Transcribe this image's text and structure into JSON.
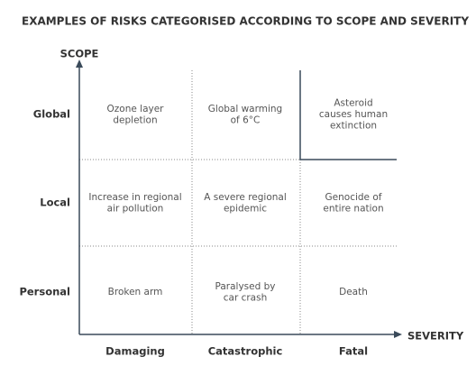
{
  "title": "EXAMPLES OF RISKS CATEGORISED ACCORDING TO SCOPE AND SEVERITY",
  "y_axis": {
    "label": "SCOPE",
    "rows": [
      "Global",
      "Local",
      "Personal"
    ]
  },
  "x_axis": {
    "label": "SEVERITY",
    "columns": [
      "Damaging",
      "Catastrophic",
      "Fatal"
    ]
  },
  "cells": [
    [
      [
        "Ozone layer",
        "depletion"
      ],
      [
        "Global warming",
        "of 6°C"
      ],
      [
        "Asteroid",
        "causes human",
        "extinction"
      ]
    ],
    [
      [
        "Increase in regional",
        "air pollution"
      ],
      [
        "A severe regional",
        "epidemic"
      ],
      [
        "Genocide of",
        "entire nation"
      ]
    ],
    [
      [
        "Broken arm"
      ],
      [
        "Paralysed by",
        "car crash"
      ],
      [
        "Death"
      ]
    ]
  ]
}
